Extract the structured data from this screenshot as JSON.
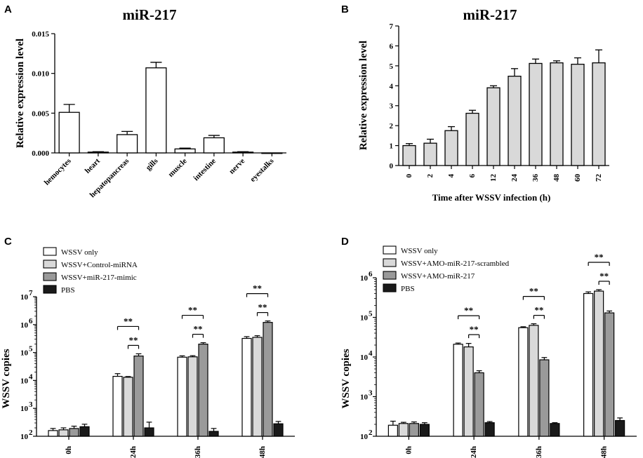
{
  "chart_data": [
    {
      "panel": "A",
      "type": "bar",
      "title": "miR-217",
      "ylabel": "Relative expression level",
      "xlabel": "",
      "ylim": [
        0,
        0.015
      ],
      "yticks": [
        0,
        0.005,
        0.01,
        0.015
      ],
      "ytick_labels": [
        "0.000",
        "0.005",
        "0.010",
        "0.015"
      ],
      "categories": [
        "hemocytes",
        "heart",
        "hepatopancreas",
        "gills",
        "muscle",
        "intestine",
        "nerve",
        "eyestalks"
      ],
      "values": [
        0.0051,
        0.0001,
        0.0023,
        0.0107,
        0.0005,
        0.0019,
        0.0001,
        0.0
      ],
      "errors": [
        0.001,
        5e-05,
        0.0004,
        0.0007,
        0.0001,
        0.0003,
        5e-05,
        0.0
      ],
      "bar_color": "#ffffff"
    },
    {
      "panel": "B",
      "type": "bar",
      "title": "miR-217",
      "ylabel": "Relative expression level",
      "xlabel": "Time after WSSV infection (h)",
      "ylim": [
        0,
        7
      ],
      "yticks": [
        0,
        1,
        2,
        3,
        4,
        5,
        6,
        7
      ],
      "ytick_labels": [
        "0",
        "1",
        "2",
        "3",
        "4",
        "5",
        "6",
        "7"
      ],
      "categories": [
        "0",
        "2",
        "4",
        "6",
        "12",
        "24",
        "36",
        "48",
        "60",
        "72"
      ],
      "values": [
        1.0,
        1.12,
        1.75,
        2.62,
        3.9,
        4.48,
        5.12,
        5.15,
        5.08,
        5.15
      ],
      "errors": [
        0.1,
        0.2,
        0.2,
        0.15,
        0.1,
        0.38,
        0.22,
        0.1,
        0.32,
        0.65
      ],
      "bar_color": "#d9d9d9"
    },
    {
      "panel": "C",
      "type": "bar",
      "log_scale": true,
      "ylabel": "WSSV copies",
      "ylim": [
        100,
        10000000
      ],
      "ytick_exponents": [
        "2",
        "3",
        "4",
        "5",
        "6",
        "7"
      ],
      "ytick_base": "10",
      "categories": [
        "0h",
        "24h",
        "36h",
        "48h"
      ],
      "series": [
        {
          "name": "WSSV only",
          "color": "#ffffff",
          "values": [
            160,
            14000,
            68000,
            320000
          ],
          "errors": [
            30,
            3500,
            8000,
            50000
          ]
        },
        {
          "name": "WSSV+Control-miRNA",
          "color": "#d9d9d9",
          "values": [
            170,
            13000,
            70000,
            350000
          ],
          "errors": [
            30,
            800,
            7000,
            50000
          ]
        },
        {
          "name": "WSSV+miR-217-mimic",
          "color": "#9a9a9a",
          "values": [
            190,
            75000,
            200000,
            1200000
          ],
          "errors": [
            40,
            15000,
            25000,
            150000
          ]
        },
        {
          "name": "PBS",
          "color": "#1a1a1a",
          "values": [
            220,
            200,
            150,
            280
          ],
          "errors": [
            50,
            120,
            40,
            60
          ]
        }
      ],
      "significance": [
        {
          "category": "24h",
          "from": 0,
          "to": 2,
          "label": "**"
        },
        {
          "category": "24h",
          "from": 1,
          "to": 2,
          "label": "**"
        },
        {
          "category": "36h",
          "from": 0,
          "to": 2,
          "label": "**"
        },
        {
          "category": "36h",
          "from": 1,
          "to": 2,
          "label": "**"
        },
        {
          "category": "48h",
          "from": 0,
          "to": 2,
          "label": "**"
        },
        {
          "category": "48h",
          "from": 1,
          "to": 2,
          "label": "**"
        }
      ],
      "legend_position": "top-left"
    },
    {
      "panel": "D",
      "type": "bar",
      "log_scale": true,
      "ylabel": "WSSV copies",
      "ylim": [
        100,
        1000000
      ],
      "ytick_exponents": [
        "2",
        "3",
        "4",
        "5",
        "6"
      ],
      "ytick_base": "10",
      "categories": [
        "0h",
        "24h",
        "36h",
        "48h"
      ],
      "series": [
        {
          "name": "WSSV only",
          "color": "#ffffff",
          "values": [
            190,
            21000,
            55000,
            400000
          ],
          "errors": [
            50,
            1500,
            3000,
            40000
          ]
        },
        {
          "name": "WSSV+AMO-miR-217-scrambled",
          "color": "#d9d9d9",
          "values": [
            210,
            18000,
            63000,
            460000
          ],
          "errors": [
            15,
            4000,
            6000,
            40000
          ]
        },
        {
          "name": "WSSV+AMO-miR-217",
          "color": "#9a9a9a",
          "values": [
            210,
            4000,
            8500,
            130000
          ],
          "errors": [
            20,
            500,
            1200,
            15000
          ]
        },
        {
          "name": "PBS",
          "color": "#1a1a1a",
          "values": [
            200,
            220,
            210,
            250
          ],
          "errors": [
            20,
            15,
            10,
            40
          ]
        }
      ],
      "significance": [
        {
          "category": "24h",
          "from": 0,
          "to": 2,
          "label": "**"
        },
        {
          "category": "24h",
          "from": 1,
          "to": 2,
          "label": "**"
        },
        {
          "category": "36h",
          "from": 0,
          "to": 2,
          "label": "**"
        },
        {
          "category": "36h",
          "from": 1,
          "to": 2,
          "label": "**"
        },
        {
          "category": "48h",
          "from": 0,
          "to": 2,
          "label": "**"
        },
        {
          "category": "48h",
          "from": 1,
          "to": 2,
          "label": "**"
        }
      ],
      "legend_position": "top-left"
    }
  ]
}
